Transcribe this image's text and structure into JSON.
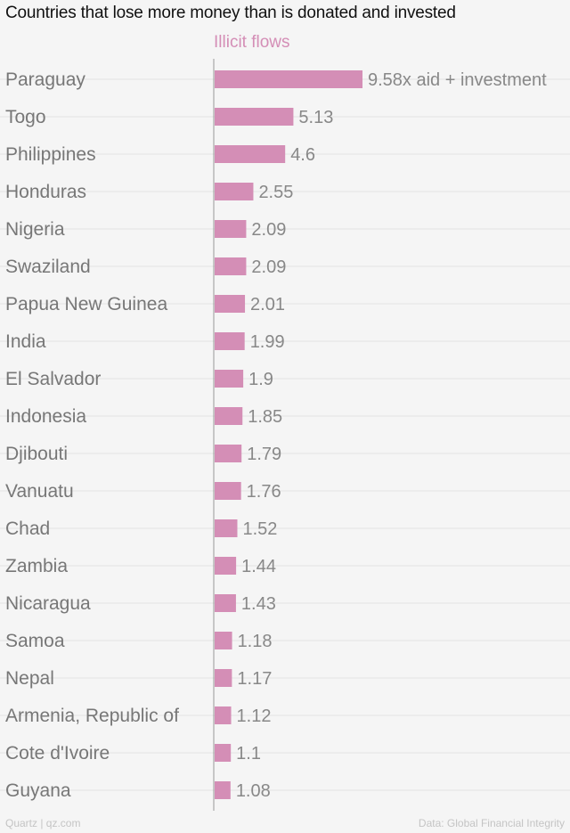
{
  "colors": {
    "bar": "#d48eb6",
    "legend": "#d48eb6",
    "grid": "#e2e2e2",
    "axis": "#999999",
    "label": "#777777",
    "value": "#888888"
  },
  "footer": {
    "source_left": "Quartz | qz.com",
    "source_right": "Data: Global Financial Integrity"
  },
  "chart_data": {
    "type": "bar",
    "orientation": "horizontal",
    "title": "Countries that lose more money than is donated and invested",
    "legend": "Illicit flows",
    "legend_placement": "top",
    "grid": true,
    "xlim": [
      0,
      9.58
    ],
    "categories": [
      "Paraguay",
      "Togo",
      "Philippines",
      "Honduras",
      "Nigeria",
      "Swaziland",
      "Papua New Guinea",
      "India",
      "El Salvador",
      "Indonesia",
      "Djibouti",
      "Vanuatu",
      "Chad",
      "Zambia",
      "Nicaragua",
      "Samoa",
      "Nepal",
      "Armenia, Republic of",
      "Cote d'Ivoire",
      "Guyana"
    ],
    "series": [
      {
        "name": "Illicit flows",
        "values": [
          9.58,
          5.13,
          4.6,
          2.55,
          2.09,
          2.09,
          2.01,
          1.99,
          1.9,
          1.85,
          1.79,
          1.76,
          1.52,
          1.44,
          1.43,
          1.18,
          1.17,
          1.12,
          1.1,
          1.08
        ],
        "data_labels": [
          "9.58x aid + investment",
          "5.13",
          "4.6",
          "2.55",
          "2.09",
          "2.09",
          "2.01",
          "1.99",
          "1.9",
          "1.85",
          "1.79",
          "1.76",
          "1.52",
          "1.44",
          "1.43",
          "1.18",
          "1.17",
          "1.12",
          "1.1",
          "1.08"
        ]
      }
    ]
  }
}
